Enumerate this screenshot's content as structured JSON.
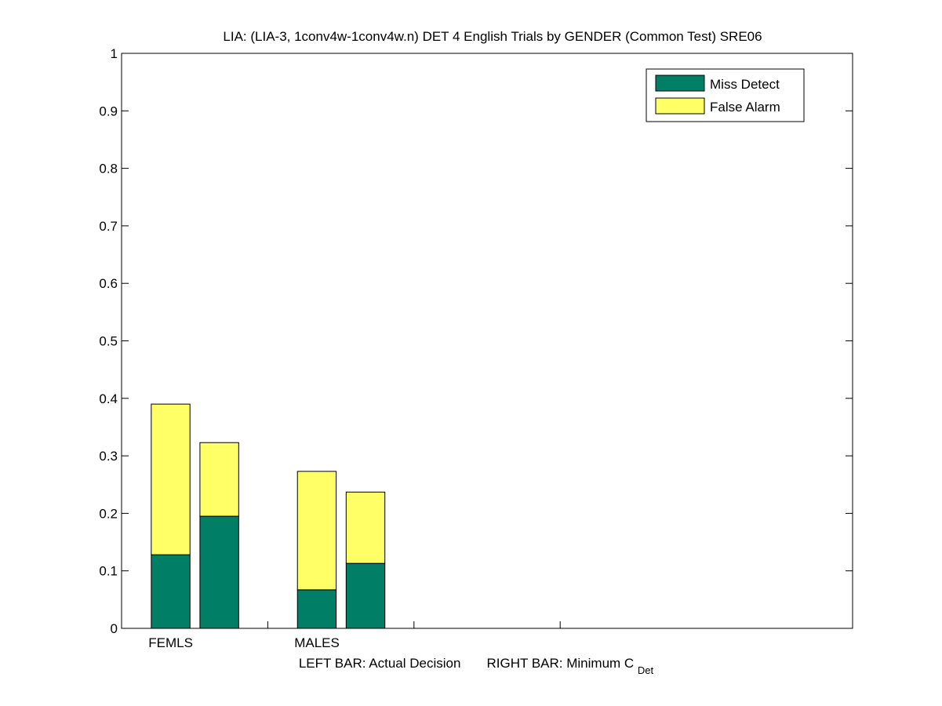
{
  "chart_data": {
    "type": "bar",
    "title": "LIA: (LIA-3, 1conv4w-1conv4w.n) DET 4 English Trials by GENDER (Common Test) SRE06",
    "xlabel": {
      "left_text": "LEFT BAR: Actual Decision",
      "right_text": "RIGHT BAR: Minimum C",
      "subscript": "Det"
    },
    "ylabel": "",
    "ylim": [
      0,
      1
    ],
    "yticks": [
      "0",
      "0.1",
      "0.2",
      "0.3",
      "0.4",
      "0.5",
      "0.6",
      "0.7",
      "0.8",
      "0.9",
      "1"
    ],
    "stacked": true,
    "grid": false,
    "legend_position": "top-right",
    "groups": [
      "FEMLS",
      "MALES"
    ],
    "bars": [
      {
        "group": "FEMLS",
        "position": "left",
        "miss_detect": 0.128,
        "false_alarm": 0.262,
        "total": 0.39
      },
      {
        "group": "FEMLS",
        "position": "right",
        "miss_detect": 0.195,
        "false_alarm": 0.128,
        "total": 0.323
      },
      {
        "group": "MALES",
        "position": "left",
        "miss_detect": 0.067,
        "false_alarm": 0.206,
        "total": 0.273
      },
      {
        "group": "MALES",
        "position": "right",
        "miss_detect": 0.113,
        "false_alarm": 0.124,
        "total": 0.237
      }
    ],
    "series": [
      {
        "name": "Miss Detect",
        "key": "miss_detect",
        "color": "#017f66"
      },
      {
        "name": "False Alarm",
        "key": "false_alarm",
        "color": "#ffff66"
      }
    ]
  }
}
